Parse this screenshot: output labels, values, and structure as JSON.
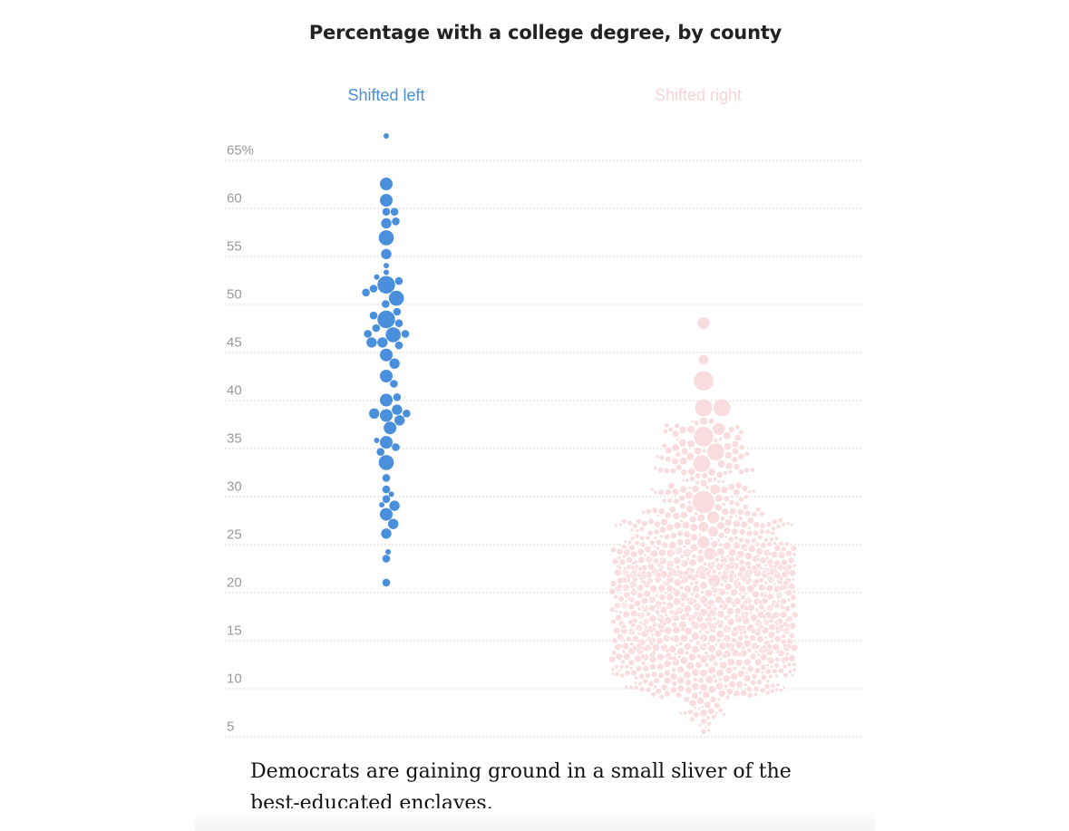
{
  "chart_data": {
    "type": "beeswarm",
    "title": "Percentage with a college degree, by county",
    "ylabel": "",
    "ylim": [
      5,
      68
    ],
    "y_ticks": [
      65,
      60,
      55,
      50,
      45,
      40,
      35,
      30,
      25,
      20,
      15,
      10,
      5
    ],
    "y_tick_labels": [
      "65%",
      "60",
      "55",
      "50",
      "45",
      "40",
      "35",
      "30",
      "25",
      "20",
      "15",
      "10",
      "5"
    ],
    "grid": true,
    "series": [
      {
        "name": "Shifted left",
        "color": "#4a8fdc",
        "points": [
          {
            "y": 67.5,
            "size": 1
          },
          {
            "y": 62.5,
            "size": 4
          },
          {
            "y": 60.8,
            "size": 4
          },
          {
            "y": 59.6,
            "size": 2
          },
          {
            "y": 59.6,
            "size": 2
          },
          {
            "y": 58.4,
            "size": 3
          },
          {
            "y": 58.6,
            "size": 2
          },
          {
            "y": 56.9,
            "size": 5
          },
          {
            "y": 55.2,
            "size": 3
          },
          {
            "y": 54.0,
            "size": 1
          },
          {
            "y": 53.3,
            "size": 1
          },
          {
            "y": 52.8,
            "size": 1
          },
          {
            "y": 52.0,
            "size": 6
          },
          {
            "y": 52.4,
            "size": 2
          },
          {
            "y": 51.6,
            "size": 2
          },
          {
            "y": 51.2,
            "size": 2
          },
          {
            "y": 50.6,
            "size": 5
          },
          {
            "y": 50.0,
            "size": 2
          },
          {
            "y": 49.2,
            "size": 2
          },
          {
            "y": 48.8,
            "size": 2
          },
          {
            "y": 48.4,
            "size": 6
          },
          {
            "y": 48.0,
            "size": 2
          },
          {
            "y": 47.5,
            "size": 2
          },
          {
            "y": 46.8,
            "size": 5
          },
          {
            "y": 46.9,
            "size": 2
          },
          {
            "y": 46.9,
            "size": 2
          },
          {
            "y": 46.0,
            "size": 3
          },
          {
            "y": 46.0,
            "size": 3
          },
          {
            "y": 45.7,
            "size": 2
          },
          {
            "y": 44.7,
            "size": 4
          },
          {
            "y": 43.8,
            "size": 3
          },
          {
            "y": 42.5,
            "size": 4
          },
          {
            "y": 41.7,
            "size": 2
          },
          {
            "y": 40.3,
            "size": 2
          },
          {
            "y": 40.0,
            "size": 4
          },
          {
            "y": 39.0,
            "size": 3
          },
          {
            "y": 38.6,
            "size": 3
          },
          {
            "y": 38.4,
            "size": 4
          },
          {
            "y": 38.6,
            "size": 2
          },
          {
            "y": 37.9,
            "size": 3
          },
          {
            "y": 37.1,
            "size": 4
          },
          {
            "y": 35.6,
            "size": 4
          },
          {
            "y": 35.8,
            "size": 1
          },
          {
            "y": 35.1,
            "size": 2
          },
          {
            "y": 34.6,
            "size": 2
          },
          {
            "y": 33.5,
            "size": 5
          },
          {
            "y": 31.9,
            "size": 2
          },
          {
            "y": 30.7,
            "size": 2
          },
          {
            "y": 30.2,
            "size": 1
          },
          {
            "y": 29.7,
            "size": 2
          },
          {
            "y": 29.1,
            "size": 1
          },
          {
            "y": 29.0,
            "size": 3
          },
          {
            "y": 28.1,
            "size": 4
          },
          {
            "y": 27.1,
            "size": 3
          },
          {
            "y": 26.1,
            "size": 3
          },
          {
            "y": 24.2,
            "size": 1
          },
          {
            "y": 23.5,
            "size": 2
          },
          {
            "y": 21.0,
            "size": 2
          }
        ]
      },
      {
        "name": "Shifted right",
        "color": "#f9dcde",
        "distribution": {
          "min": 5.5,
          "max": 48,
          "peak_y": 19,
          "count": 1300,
          "notable_points": [
            {
              "y": 48.0,
              "size": 4
            },
            {
              "y": 44.2,
              "size": 3
            },
            {
              "y": 42.0,
              "size": 7
            },
            {
              "y": 39.2,
              "size": 6
            },
            {
              "y": 39.2,
              "size": 6
            },
            {
              "y": 37.0,
              "size": 4
            },
            {
              "y": 36.2,
              "size": 7
            },
            {
              "y": 34.6,
              "size": 6
            },
            {
              "y": 33.4,
              "size": 6
            },
            {
              "y": 30.7,
              "size": 3
            },
            {
              "y": 29.4,
              "size": 8
            },
            {
              "y": 27.8,
              "size": 4
            },
            {
              "y": 26.8,
              "size": 3
            },
            {
              "y": 26.3,
              "size": 3
            },
            {
              "y": 25.2,
              "size": 4
            },
            {
              "y": 24.0,
              "size": 4
            },
            {
              "y": 22.0,
              "size": 4
            },
            {
              "y": 21.2,
              "size": 4
            },
            {
              "y": 12.4,
              "size": 2
            }
          ]
        }
      }
    ]
  },
  "caption": "Democrats are gaining ground in a small sliver of the best-educated enclaves."
}
